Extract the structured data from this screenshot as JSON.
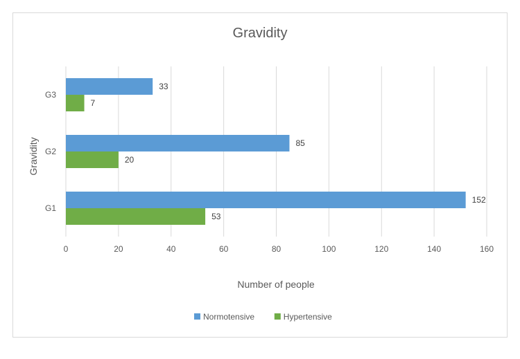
{
  "chart_data": {
    "type": "bar",
    "orientation": "horizontal",
    "title": "Gravidity",
    "xlabel": "Number of people",
    "ylabel": "Gravidity",
    "categories": [
      "G1",
      "G2",
      "G3"
    ],
    "series": [
      {
        "name": "Normotensive",
        "values": [
          152,
          85,
          33
        ],
        "color": "#5b9bd5"
      },
      {
        "name": "Hypertensive",
        "values": [
          53,
          20,
          7
        ],
        "color": "#70ad47"
      }
    ],
    "xlim": [
      0,
      160
    ],
    "xticks": [
      0,
      20,
      40,
      60,
      80,
      100,
      120,
      140,
      160
    ],
    "grid": true,
    "legend_position": "bottom",
    "data_labels": true
  }
}
